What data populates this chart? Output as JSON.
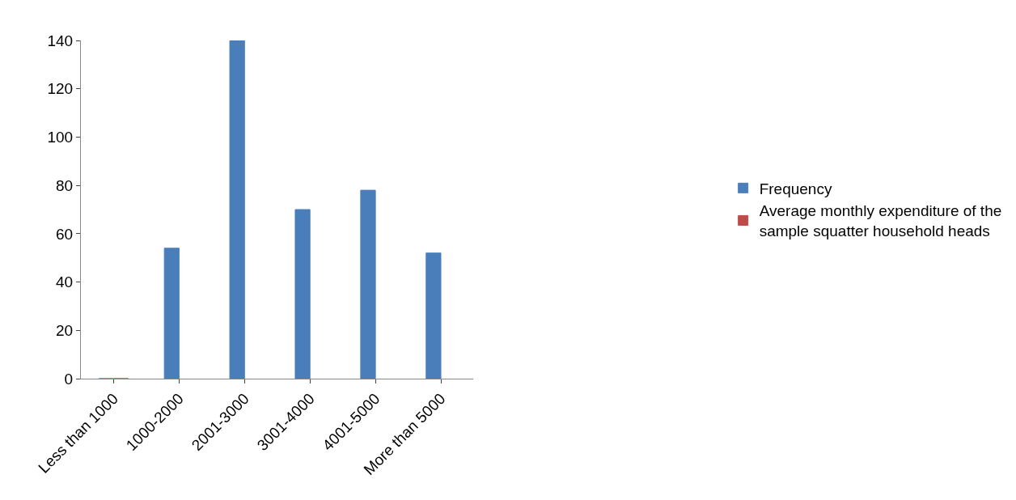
{
  "chart_data": {
    "type": "bar",
    "categories": [
      "Less than 1000",
      "1000-2000",
      "2001-3000",
      "3001-4000",
      "4001-5000",
      "More than 5000"
    ],
    "series": [
      {
        "name": "Frequency",
        "color": "#4a7ebb",
        "values": [
          0,
          54,
          140,
          70,
          78,
          52
        ]
      },
      {
        "name": "Average monthly expenditure of the sample squatter household heads",
        "color": "#be4b48",
        "values": [
          0,
          null,
          null,
          null,
          null,
          null
        ]
      }
    ],
    "ylim": [
      0,
      140
    ],
    "yticks": [
      0,
      20,
      40,
      60,
      80,
      100,
      120,
      140
    ],
    "legend": "right"
  }
}
